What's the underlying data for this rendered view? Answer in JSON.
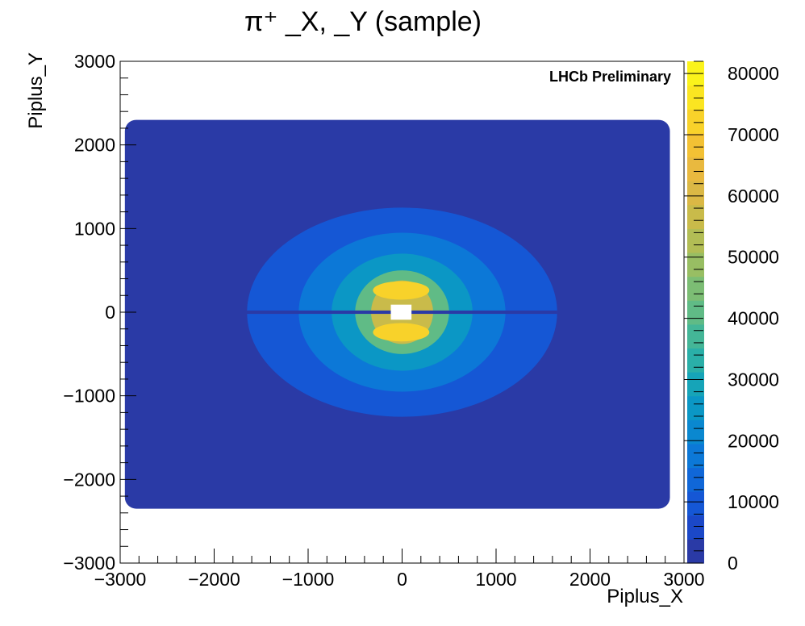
{
  "chart_data": {
    "type": "heatmap",
    "title": "π⁺ _X, _Y (sample)",
    "xlabel": "Piplus_X",
    "ylabel": "Piplus_Y",
    "xlim": [
      -3000,
      3000
    ],
    "ylim": [
      -3000,
      3000
    ],
    "zlim": [
      0,
      82000
    ],
    "x_ticks": [
      -3000,
      -2000,
      -1000,
      0,
      1000,
      2000,
      3000
    ],
    "x_tick_labels": [
      "−3000",
      "−2000",
      "−1000",
      "0",
      "1000",
      "2000",
      "3000"
    ],
    "y_ticks": [
      -3000,
      -2000,
      -1000,
      0,
      1000,
      2000,
      3000
    ],
    "y_tick_labels": [
      "−3000",
      "−2000",
      "−1000",
      "0",
      "1000",
      "2000",
      "3000"
    ],
    "z_ticks": [
      0,
      10000,
      20000,
      30000,
      40000,
      50000,
      60000,
      70000,
      80000
    ],
    "z_tick_labels": [
      "0",
      "10000",
      "20000",
      "30000",
      "40000",
      "50000",
      "60000",
      "70000",
      "80000"
    ],
    "annotation": "LHCb Preliminary",
    "grid": false,
    "colorbar": "right",
    "palette": [
      "#2a3aa6",
      "#1b48c8",
      "#1557d5",
      "#1067d8",
      "#0c78d7",
      "#0a88d0",
      "#0b97c5",
      "#16a4b8",
      "#2aafa8",
      "#44b697",
      "#60bb86",
      "#7cbd74",
      "#98be63",
      "#b2bd55",
      "#c9bb4a",
      "#dbb845",
      "#e9b93f",
      "#f3c134",
      "#f8d22a",
      "#fbe521",
      "#fbf31b"
    ],
    "regions": [
      {
        "shape": "rect",
        "x": [
          -2950,
          2850
        ],
        "y": [
          -2350,
          2300
        ],
        "value": 2500
      },
      {
        "shape": "ellipse",
        "center": [
          0,
          0
        ],
        "rx": 1650,
        "ry": 1250,
        "value": 8000
      },
      {
        "shape": "ellipse",
        "center": [
          0,
          0
        ],
        "rx": 1100,
        "ry": 950,
        "value": 16000
      },
      {
        "shape": "ellipse",
        "center": [
          0,
          0
        ],
        "rx": 750,
        "ry": 700,
        "value": 26000
      },
      {
        "shape": "ellipse",
        "center": [
          0,
          0
        ],
        "rx": 500,
        "ry": 500,
        "value": 42000
      },
      {
        "shape": "ellipse",
        "center": [
          0,
          0
        ],
        "rx": 330,
        "ry": 380,
        "value": 58000
      },
      {
        "shape": "ellipse",
        "center": [
          -10,
          260
        ],
        "rx": 300,
        "ry": 110,
        "value": 74000
      },
      {
        "shape": "ellipse",
        "center": [
          -10,
          -240
        ],
        "rx": 300,
        "ry": 110,
        "value": 74000
      },
      {
        "shape": "rect",
        "x": [
          -1700,
          1650
        ],
        "y": [
          -20,
          20
        ],
        "value": 2500
      },
      {
        "shape": "rect",
        "x": [
          -120,
          100
        ],
        "y": [
          -90,
          90
        ],
        "value": null
      }
    ]
  }
}
